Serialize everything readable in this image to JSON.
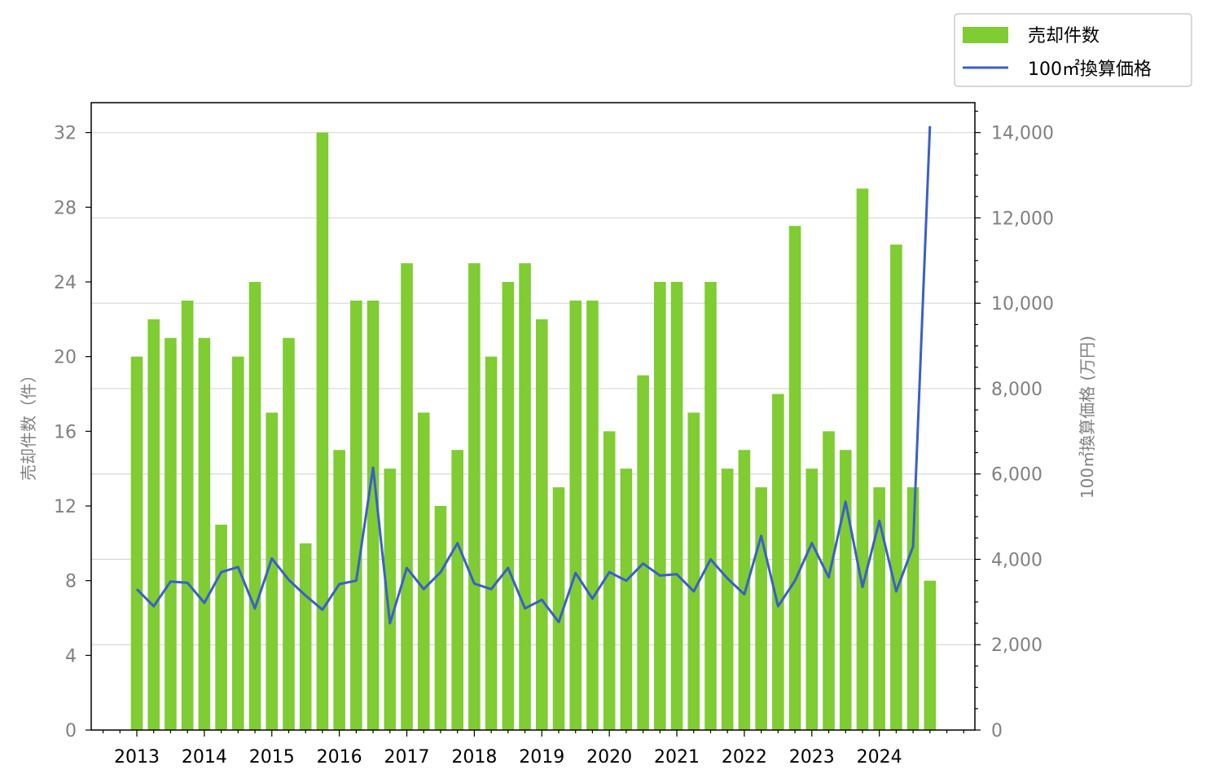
{
  "chart_data": {
    "type": "bar",
    "x": [
      "2013Q1",
      "2013Q2",
      "2013Q3",
      "2013Q4",
      "2014Q1",
      "2014Q2",
      "2014Q3",
      "2014Q4",
      "2015Q1",
      "2015Q2",
      "2015Q3",
      "2015Q4",
      "2016Q1",
      "2016Q2",
      "2016Q3",
      "2016Q4",
      "2017Q1",
      "2017Q2",
      "2017Q3",
      "2017Q4",
      "2018Q1",
      "2018Q2",
      "2018Q3",
      "2018Q4",
      "2019Q1",
      "2019Q2",
      "2019Q3",
      "2019Q4",
      "2020Q1",
      "2020Q2",
      "2020Q3",
      "2020Q4",
      "2021Q1",
      "2021Q2",
      "2021Q3",
      "2021Q4",
      "2022Q1",
      "2022Q2",
      "2022Q3",
      "2022Q4",
      "2023Q1",
      "2023Q2",
      "2023Q3",
      "2023Q4",
      "2024Q1",
      "2024Q2",
      "2024Q3",
      "2024Q4"
    ],
    "x_tick_labels": [
      "2013",
      "2014",
      "2015",
      "2016",
      "2017",
      "2018",
      "2019",
      "2020",
      "2021",
      "2022",
      "2023",
      "2024"
    ],
    "series": [
      {
        "name": "売却件数",
        "type": "bar",
        "axis": "left",
        "color": "#7fcc33",
        "values": [
          20,
          22,
          21,
          23,
          21,
          11,
          20,
          24,
          17,
          21,
          10,
          32,
          15,
          23,
          23,
          14,
          25,
          17,
          12,
          15,
          25,
          20,
          24,
          25,
          22,
          13,
          23,
          23,
          16,
          14,
          19,
          24,
          24,
          17,
          24,
          14,
          15,
          13,
          18,
          27,
          14,
          16,
          15,
          29,
          13,
          26,
          13,
          8
        ]
      },
      {
        "name": "100㎡換算価格",
        "type": "line",
        "axis": "right",
        "color": "#3a5fc8",
        "values": [
          3300,
          2900,
          3480,
          3450,
          2980,
          3700,
          3820,
          2850,
          4020,
          3520,
          3150,
          2820,
          3420,
          3500,
          6150,
          2500,
          3800,
          3300,
          3700,
          4380,
          3430,
          3300,
          3800,
          2850,
          3050,
          2530,
          3680,
          3080,
          3700,
          3500,
          3900,
          3620,
          3650,
          3250,
          4000,
          3550,
          3180,
          4550,
          2900,
          3500,
          4380,
          3580,
          5350,
          3350,
          4900,
          3250,
          4300,
          14150
        ]
      }
    ],
    "ylabel_left": "売却件数（件）",
    "ylabel_right": "100㎡換算価格 (万円)",
    "ylim_left": [
      0,
      33.6
    ],
    "ylim_right": [
      0,
      14700
    ],
    "yticks_left": [
      "0",
      "4",
      "8",
      "12",
      "16",
      "20",
      "24",
      "28",
      "32"
    ],
    "yticks_right": [
      "0",
      "2,000",
      "4,000",
      "6,000",
      "8,000",
      "10,000",
      "12,000",
      "14,000"
    ],
    "grid": "horizontal, right axis",
    "legend_position": "top-right, outside plot"
  }
}
